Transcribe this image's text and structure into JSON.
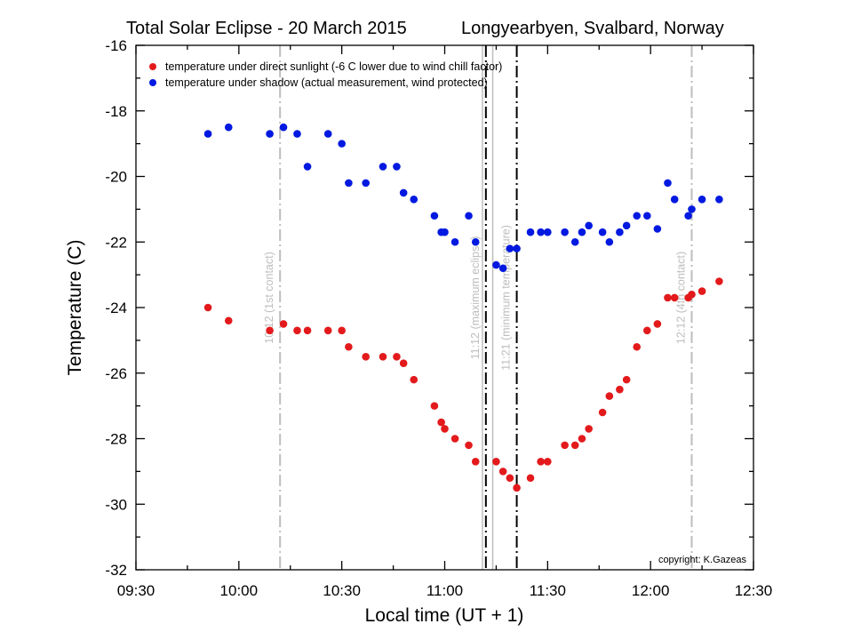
{
  "chart_data": {
    "type": "scatter",
    "title": "Total Solar Eclipse - 20 March 2015",
    "subtitle": "Longyearbyen, Svalbard, Norway",
    "xlabel": "Local time  (UT + 1)",
    "ylabel": "Temperature (C)",
    "xlim": [
      "09:30",
      "12:30"
    ],
    "ylim": [
      -32,
      -16
    ],
    "x_ticks": [
      "09:30",
      "10:00",
      "10:30",
      "11:00",
      "11:30",
      "12:00",
      "12:30"
    ],
    "y_ticks": [
      "-16",
      "-18",
      "-20",
      "-22",
      "-24",
      "-26",
      "-28",
      "-30",
      "-32"
    ],
    "legend_position": "top-left",
    "series": [
      {
        "name": "temperature under direct sunlight (-6 C lower due to wind chill factor)",
        "color": "#e31a1c",
        "points": [
          [
            "09:51",
            -24.0
          ],
          [
            "09:57",
            -24.4
          ],
          [
            "10:09",
            -24.7
          ],
          [
            "10:13",
            -24.5
          ],
          [
            "10:17",
            -24.7
          ],
          [
            "10:20",
            -24.7
          ],
          [
            "10:26",
            -24.7
          ],
          [
            "10:30",
            -24.7
          ],
          [
            "10:32",
            -25.2
          ],
          [
            "10:37",
            -25.5
          ],
          [
            "10:42",
            -25.5
          ],
          [
            "10:46",
            -25.5
          ],
          [
            "10:48",
            -25.7
          ],
          [
            "10:51",
            -26.2
          ],
          [
            "10:57",
            -27.0
          ],
          [
            "10:59",
            -27.5
          ],
          [
            "11:00",
            -27.7
          ],
          [
            "11:03",
            -28.0
          ],
          [
            "11:07",
            -28.2
          ],
          [
            "11:09",
            -28.7
          ],
          [
            "11:15",
            -28.7
          ],
          [
            "11:17",
            -29.0
          ],
          [
            "11:19",
            -29.2
          ],
          [
            "11:21",
            -29.5
          ],
          [
            "11:25",
            -29.2
          ],
          [
            "11:28",
            -28.7
          ],
          [
            "11:30",
            -28.7
          ],
          [
            "11:35",
            -28.2
          ],
          [
            "11:38",
            -28.2
          ],
          [
            "11:40",
            -28.0
          ],
          [
            "11:42",
            -27.7
          ],
          [
            "11:46",
            -27.2
          ],
          [
            "11:48",
            -26.7
          ],
          [
            "11:51",
            -26.5
          ],
          [
            "11:53",
            -26.2
          ],
          [
            "11:56",
            -25.2
          ],
          [
            "11:59",
            -24.7
          ],
          [
            "12:02",
            -24.5
          ],
          [
            "12:05",
            -23.7
          ],
          [
            "12:07",
            -23.7
          ],
          [
            "12:11",
            -23.7
          ],
          [
            "12:12",
            -23.6
          ],
          [
            "12:15",
            -23.5
          ],
          [
            "12:20",
            -23.2
          ]
        ]
      },
      {
        "name": "temperature under shadow (actual measurement, wind protected)",
        "color": "#0019e0",
        "points": [
          [
            "09:51",
            -18.7
          ],
          [
            "09:57",
            -18.5
          ],
          [
            "10:09",
            -18.7
          ],
          [
            "10:13",
            -18.5
          ],
          [
            "10:17",
            -18.7
          ],
          [
            "10:20",
            -19.7
          ],
          [
            "10:26",
            -18.7
          ],
          [
            "10:30",
            -19.0
          ],
          [
            "10:32",
            -20.2
          ],
          [
            "10:37",
            -20.2
          ],
          [
            "10:42",
            -19.7
          ],
          [
            "10:46",
            -19.7
          ],
          [
            "10:48",
            -20.5
          ],
          [
            "10:51",
            -20.7
          ],
          [
            "10:57",
            -21.2
          ],
          [
            "10:59",
            -21.7
          ],
          [
            "11:00",
            -21.7
          ],
          [
            "11:03",
            -22.0
          ],
          [
            "11:07",
            -21.2
          ],
          [
            "11:09",
            -22.0
          ],
          [
            "11:15",
            -22.7
          ],
          [
            "11:17",
            -22.8
          ],
          [
            "11:19",
            -22.2
          ],
          [
            "11:21",
            -22.2
          ],
          [
            "11:25",
            -21.7
          ],
          [
            "11:28",
            -21.7
          ],
          [
            "11:30",
            -21.7
          ],
          [
            "11:35",
            -21.7
          ],
          [
            "11:38",
            -22.0
          ],
          [
            "11:40",
            -21.7
          ],
          [
            "11:42",
            -21.5
          ],
          [
            "11:46",
            -21.7
          ],
          [
            "11:48",
            -22.0
          ],
          [
            "11:51",
            -21.7
          ],
          [
            "11:53",
            -21.5
          ],
          [
            "11:56",
            -21.2
          ],
          [
            "11:59",
            -21.2
          ],
          [
            "12:02",
            -21.6
          ],
          [
            "12:05",
            -20.2
          ],
          [
            "12:07",
            -20.7
          ],
          [
            "12:11",
            -21.2
          ],
          [
            "12:12",
            -21.0
          ],
          [
            "12:15",
            -20.7
          ],
          [
            "12:20",
            -20.7
          ]
        ]
      }
    ],
    "vertical_lines": [
      {
        "time": "10:12",
        "label": "10:12 (1st contact)",
        "style": "dash-dot",
        "color": "#bdbdbd"
      },
      {
        "time": "11:11",
        "label": "",
        "style": "solid",
        "color": "#bdbdbd"
      },
      {
        "time": "11:14",
        "label": "",
        "style": "solid",
        "color": "#bdbdbd"
      },
      {
        "time": "11:12",
        "label": "11:12 (maximum eclipse)",
        "style": "dash-dot",
        "color": "#000000"
      },
      {
        "time": "11:21",
        "label": "11:21 (minimum temperature)",
        "style": "dash-dot",
        "color": "#000000"
      },
      {
        "time": "12:12",
        "label": "12:12 (4th contact)",
        "style": "dash-dot",
        "color": "#bdbdbd"
      }
    ],
    "annotations": [
      "copyright:  K.Gazeas"
    ]
  }
}
